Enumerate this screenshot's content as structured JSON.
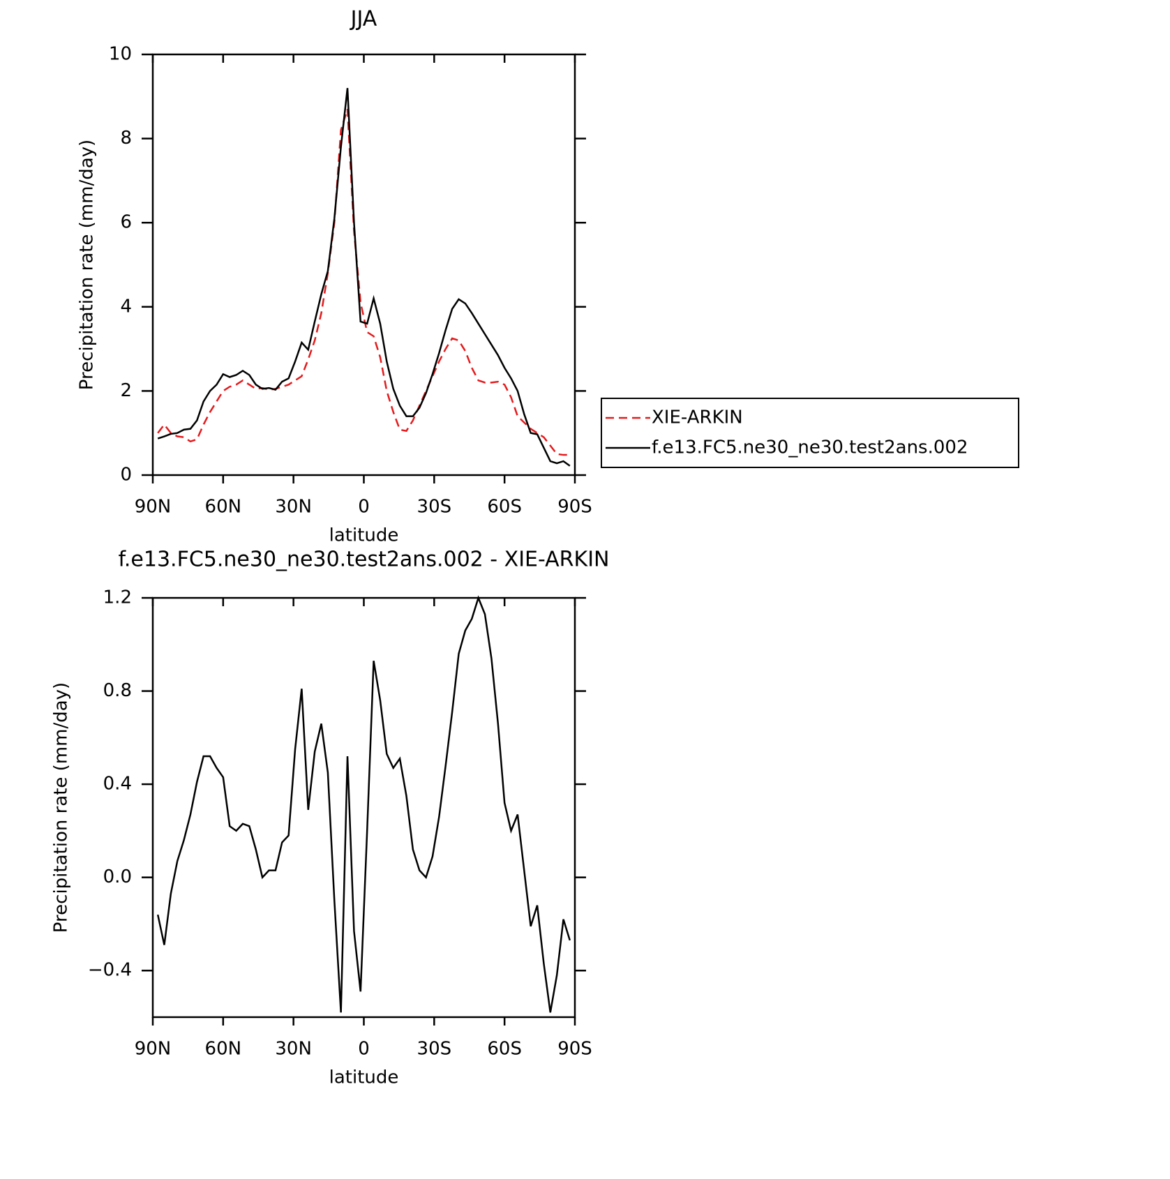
{
  "chart_data": [
    {
      "type": "line",
      "title": "JJA",
      "xlabel": "latitude",
      "ylabel": "Precipitation rate (mm/day)",
      "x": [
        87.86,
        85.1,
        82.31,
        79.53,
        76.74,
        73.95,
        71.16,
        68.37,
        65.58,
        62.79,
        60.0,
        57.21,
        54.42,
        51.63,
        48.84,
        46.05,
        43.26,
        40.47,
        37.67,
        34.88,
        32.09,
        29.3,
        26.51,
        23.72,
        20.93,
        18.14,
        15.35,
        12.56,
        9.77,
        6.98,
        4.19,
        1.4,
        -1.4,
        -4.19,
        -6.98,
        -9.77,
        -12.56,
        -15.35,
        -18.14,
        -20.93,
        -23.72,
        -26.51,
        -29.3,
        -32.09,
        -34.88,
        -37.67,
        -40.47,
        -43.26,
        -46.05,
        -48.84,
        -51.63,
        -54.42,
        -57.21,
        -60.0,
        -62.79,
        -65.58,
        -68.37,
        -71.16,
        -73.95,
        -76.74,
        -79.53,
        -82.31,
        -85.1,
        -87.86
      ],
      "series": [
        {
          "name": "XIE-ARKIN",
          "color": "#e41a1c",
          "linestyle": "dashed",
          "values": [
            1.0,
            1.2,
            1.0,
            0.92,
            0.9,
            0.8,
            0.85,
            1.2,
            1.5,
            1.75,
            2.0,
            2.1,
            2.15,
            2.25,
            2.15,
            2.05,
            2.07,
            2.03,
            2.05,
            2.1,
            2.15,
            2.25,
            2.35,
            2.75,
            3.2,
            3.85,
            4.8,
            6.0,
            8.2,
            8.7,
            5.8,
            4.1,
            3.4,
            3.3,
            2.8,
            2.0,
            1.5,
            1.08,
            1.05,
            1.3,
            1.65,
            2.0,
            2.35,
            2.7,
            3.0,
            3.25,
            3.2,
            2.95,
            2.55,
            2.25,
            2.2,
            2.2,
            2.22,
            2.15,
            1.85,
            1.4,
            1.25,
            1.1,
            1.0,
            0.9,
            0.7,
            0.5,
            0.48,
            0.48
          ]
        },
        {
          "name": "f.e13.FC5.ne30_ne30.test2ans.002",
          "color": "#000000",
          "linestyle": "solid",
          "values": [
            0.87,
            0.92,
            0.98,
            1.0,
            1.08,
            1.1,
            1.3,
            1.75,
            2.0,
            2.15,
            2.4,
            2.33,
            2.38,
            2.48,
            2.38,
            2.15,
            2.05,
            2.07,
            2.03,
            2.22,
            2.3,
            2.7,
            3.15,
            2.98,
            3.65,
            4.3,
            4.85,
            6.1,
            7.8,
            9.2,
            6.0,
            3.65,
            3.6,
            4.2,
            3.6,
            2.7,
            2.05,
            1.65,
            1.4,
            1.4,
            1.6,
            1.95,
            2.4,
            2.9,
            3.45,
            3.95,
            4.18,
            4.08,
            3.85,
            3.6,
            3.35,
            3.1,
            2.85,
            2.55,
            2.3,
            2.0,
            1.45,
            1.0,
            0.97,
            0.65,
            0.33,
            0.28,
            0.33,
            0.22
          ]
        }
      ],
      "xlim": [
        90,
        -90
      ],
      "xticks": [
        {
          "value": 90,
          "label": "90N"
        },
        {
          "value": 60,
          "label": "60N"
        },
        {
          "value": 30,
          "label": "30N"
        },
        0,
        {
          "value": -30,
          "label": "30S"
        },
        {
          "value": -60,
          "label": "60S"
        },
        {
          "value": -90,
          "label": "90S"
        }
      ],
      "ylim": [
        0,
        10
      ],
      "yticks": [
        0,
        2,
        4,
        6,
        8,
        10
      ],
      "legend": "outside-right"
    },
    {
      "type": "line",
      "title": "f.e13.FC5.ne30_ne30.test2ans.002 - XIE-ARKIN",
      "xlabel": "latitude",
      "ylabel": "Precipitation rate (mm/day)",
      "x": [
        87.86,
        85.1,
        82.31,
        79.53,
        76.74,
        73.95,
        71.16,
        68.37,
        65.58,
        62.79,
        60.0,
        57.21,
        54.42,
        51.63,
        48.84,
        46.05,
        43.26,
        40.47,
        37.67,
        34.88,
        32.09,
        29.3,
        26.51,
        23.72,
        20.93,
        18.14,
        15.35,
        12.56,
        9.77,
        6.98,
        4.19,
        1.4,
        -1.4,
        -4.19,
        -6.98,
        -9.77,
        -12.56,
        -15.35,
        -18.14,
        -20.93,
        -23.72,
        -26.51,
        -29.3,
        -32.09,
        -34.88,
        -37.67,
        -40.47,
        -43.26,
        -46.05,
        -48.84,
        -51.63,
        -54.42,
        -57.21,
        -60.0,
        -62.79,
        -65.58,
        -68.37,
        -71.16,
        -73.95,
        -76.74,
        -79.53,
        -82.31,
        -85.1,
        -87.86
      ],
      "color": "#000000",
      "values": [
        -0.16,
        -0.29,
        -0.07,
        0.07,
        0.16,
        0.27,
        0.41,
        0.52,
        0.52,
        0.47,
        0.43,
        0.22,
        0.2,
        0.23,
        0.22,
        0.12,
        0.0,
        0.03,
        0.03,
        0.15,
        0.18,
        0.55,
        0.81,
        0.29,
        0.54,
        0.66,
        0.45,
        -0.1,
        -0.58,
        0.52,
        -0.23,
        -0.49,
        0.2,
        0.93,
        0.76,
        0.53,
        0.47,
        0.51,
        0.35,
        0.12,
        0.03,
        0.0,
        0.09,
        0.26,
        0.48,
        0.71,
        0.96,
        1.06,
        1.11,
        1.2,
        1.13,
        0.94,
        0.66,
        0.32,
        0.2,
        0.27,
        0.03,
        -0.21,
        -0.12,
        -0.37,
        -0.58,
        -0.42,
        -0.18,
        -0.27
      ],
      "xlim": [
        90,
        -90
      ],
      "xticks": [
        {
          "value": 90,
          "label": "90N"
        },
        {
          "value": 60,
          "label": "60N"
        },
        {
          "value": 30,
          "label": "30N"
        },
        0,
        {
          "value": -30,
          "label": "30S"
        },
        {
          "value": -60,
          "label": "60S"
        },
        {
          "value": -90,
          "label": "90S"
        }
      ],
      "ylim": [
        -0.6,
        1.2
      ],
      "yticks": [
        {
          "value": -0.4,
          "label": "−0.4"
        },
        {
          "value": 0,
          "label": "0.0"
        },
        0.4,
        0.8,
        1.2
      ]
    }
  ]
}
